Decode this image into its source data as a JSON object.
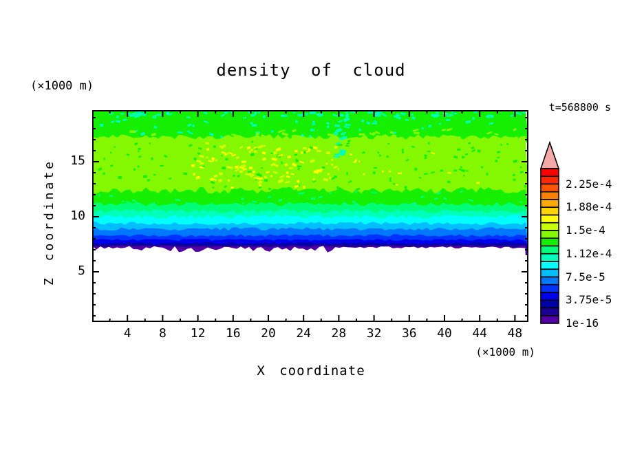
{
  "title": "density of cloud",
  "time_label": "t=568800 s",
  "axes": {
    "x_label": "X coordinate",
    "y_label": "Z coordinate",
    "x_unit": "(×1000 m)",
    "y_unit": "(×1000 m)",
    "x_ticks": [
      4,
      8,
      12,
      16,
      20,
      24,
      28,
      32,
      36,
      40,
      44,
      48
    ],
    "x_minor_step": 2,
    "y_ticks": [
      5,
      10,
      15
    ],
    "y_minor_step": 1
  },
  "colorbar": {
    "labels": [
      "2.25e-4",
      "1.88e-4",
      "1.5e-4",
      "1.12e-4",
      "7.5e-5",
      "3.75e-5",
      "1e-16"
    ],
    "arrow_color": "#f5a8a8",
    "cells_top_to_bottom": [
      "#ff0000",
      "#ff2800",
      "#ff5500",
      "#ff8000",
      "#ffaa00",
      "#ffd400",
      "#ffff00",
      "#caff00",
      "#84f800",
      "#14f000",
      "#00ff77",
      "#00ffbb",
      "#00ffff",
      "#00bfff",
      "#0077ff",
      "#0033ff",
      "#0000ee",
      "#0000aa",
      "#1c0095",
      "#5000a5"
    ]
  },
  "chart_data": {
    "type": "heatmap",
    "subtype": "filled-contour",
    "title": "density of cloud",
    "time": "t=568800 s",
    "xlabel": "X coordinate (×1000 m)",
    "ylabel": "Z coordinate (×1000 m)",
    "xlim": [
      0,
      49.5
    ],
    "zlim": [
      0.44,
      19.69
    ],
    "contour_interval": "1.25e-5, labeled every 3.75e-5 from 1e-16 to 2.25e-4",
    "description": "Horizontally stratified cloud-density field: zero (white) below z≈7, thin rainbow stack purple→blue→cyan rising 7<z<10.5, broad green/chartreuse cloud layer (≈1.3e-4 to 1.5e-4) for 11<z<19.7 with yellow mottling (≈1.6e-4) around x=10–25, z=13–16",
    "bands": [
      {
        "z_top": 19.69,
        "color": "#14f000",
        "jitter": 0,
        "value_range": "≈1.25e-4–1.375e-4"
      },
      {
        "z_top": 17.25,
        "color": "#84f800",
        "jitter": 4,
        "value_range": "≈1.375e-4–1.5e-4"
      },
      {
        "z_top": 12.4,
        "color": "#14f000",
        "jitter": 5,
        "value_range": "≈1.25e-4–1.375e-4"
      },
      {
        "z_top": 11.15,
        "color": "#00ff77",
        "jitter": 3,
        "value_range": "≈1.125e-4–1.25e-4"
      },
      {
        "z_top": 10.5,
        "color": "#00ffbb",
        "jitter": 3,
        "value_range": "≈1e-4–1.125e-4"
      },
      {
        "z_top": 10.0,
        "color": "#00ffff",
        "jitter": 3,
        "value_range": "≈8.75e-5–1e-4"
      },
      {
        "z_top": 9.4,
        "color": "#00bfff",
        "jitter": 2.5,
        "value_range": "≈7.5e-5–8.75e-5"
      },
      {
        "z_top": 8.9,
        "color": "#0077ff",
        "jitter": 2.5,
        "value_range": "≈6.25e-5–7.5e-5"
      },
      {
        "z_top": 8.3,
        "color": "#0033ff",
        "jitter": 2,
        "value_range": "≈5e-5–6.25e-5"
      },
      {
        "z_top": 7.9,
        "color": "#0000ee",
        "jitter": 1.5,
        "value_range": "≈3.75e-5–5e-5"
      },
      {
        "z_top": 7.6,
        "color": "#0000aa",
        "jitter": 1.5,
        "value_range": "≈2.5e-5–3.75e-5"
      },
      {
        "z_top": 7.45,
        "color": "#1c0095",
        "jitter": 1.2,
        "value_range": "≈1.25e-5–2.5e-5"
      },
      {
        "z_top": 7.3,
        "color": "#5000a5",
        "jitter": 1.2,
        "value_range": "≈1e-16–1.25e-5"
      }
    ],
    "cloud_base": {
      "z_left": 7.05,
      "z_right": 7.2,
      "step_at_x": 27.6
    },
    "speckles": [
      {
        "color": "#00ffbb",
        "count": 70,
        "x": [
          2,
          630
        ],
        "y": [
          1,
          9
        ],
        "w": [
          3,
          10
        ],
        "h": [
          2,
          4
        ]
      },
      {
        "color": "#00ffbb",
        "count": 45,
        "x": [
          2,
          630
        ],
        "y": [
          10,
          38
        ],
        "w": [
          3,
          8
        ],
        "h": [
          2,
          4
        ]
      },
      {
        "color": "#84f800",
        "count": 40,
        "x": [
          2,
          630
        ],
        "y": [
          28,
          44
        ],
        "w": [
          4,
          10
        ],
        "h": [
          2,
          4
        ]
      },
      {
        "color": "#14f000",
        "count": 130,
        "x": [
          2,
          630
        ],
        "y": [
          44,
          118
        ],
        "w": [
          2,
          6
        ],
        "h": [
          2,
          4
        ]
      },
      {
        "color": "#ffff00",
        "count": 55,
        "x": [
          140,
          330
        ],
        "y": [
          52,
          112
        ],
        "w": [
          3,
          8
        ],
        "h": [
          2,
          4
        ]
      },
      {
        "color": "#d8ff00",
        "count": 45,
        "x": [
          150,
          360
        ],
        "y": [
          45,
          105
        ],
        "w": [
          3,
          9
        ],
        "h": [
          2,
          4
        ]
      },
      {
        "color": "#ffff00",
        "count": 18,
        "x": [
          330,
          560
        ],
        "y": [
          60,
          110
        ],
        "w": [
          2,
          6
        ],
        "h": [
          2,
          3
        ]
      },
      {
        "color": "#00ffbb",
        "count": 22,
        "x": [
          350,
          368
        ],
        "y": [
          6,
          68
        ],
        "w": [
          3,
          9
        ],
        "h": [
          2,
          5
        ]
      },
      {
        "color": "#00ff77",
        "count": 30,
        "x": [
          2,
          630
        ],
        "y": [
          118,
          136
        ],
        "w": [
          3,
          8
        ],
        "h": [
          2,
          3
        ]
      }
    ]
  }
}
